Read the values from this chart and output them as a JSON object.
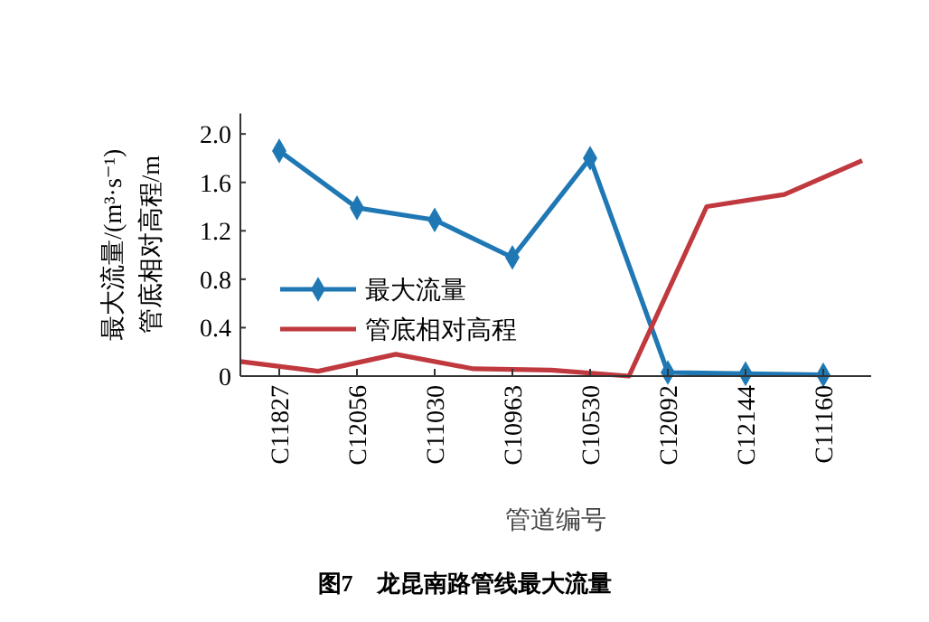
{
  "chart_data": {
    "type": "line",
    "title": "图7　龙昆南路管线最大流量",
    "xlabel": "管道编号",
    "ylabel": "最大流量/(m³·s⁻¹)\n管底相对高程/m",
    "categories": [
      null,
      "C11827",
      null,
      "C12056",
      null,
      "C11030",
      null,
      "C10963",
      null,
      "C10530",
      null,
      "C12092",
      null,
      "C12144",
      null,
      "C11160",
      null
    ],
    "ylim": [
      0,
      2.17
    ],
    "yticks": [
      0,
      0.4,
      0.8,
      1.2,
      1.6,
      {
        "value": 2,
        "label": "2.0"
      }
    ],
    "legend": "left",
    "grid": false,
    "line_style": "solid",
    "series": [
      {
        "name": "最大流量",
        "color": "#1f78b4",
        "marker": "diamond",
        "values": [
          null,
          1.86,
          null,
          1.39,
          null,
          1.29,
          null,
          0.98,
          null,
          1.8,
          null,
          0.03,
          null,
          0.02,
          null,
          0.01,
          null
        ]
      },
      {
        "name": "管底相对高程",
        "color": "#c0393f",
        "marker": "none",
        "values": [
          0.12,
          null,
          0.04,
          null,
          0.18,
          null,
          0.06,
          null,
          0.05,
          null,
          0,
          null,
          1.4,
          null,
          1.5,
          null,
          1.78
        ]
      }
    ]
  }
}
